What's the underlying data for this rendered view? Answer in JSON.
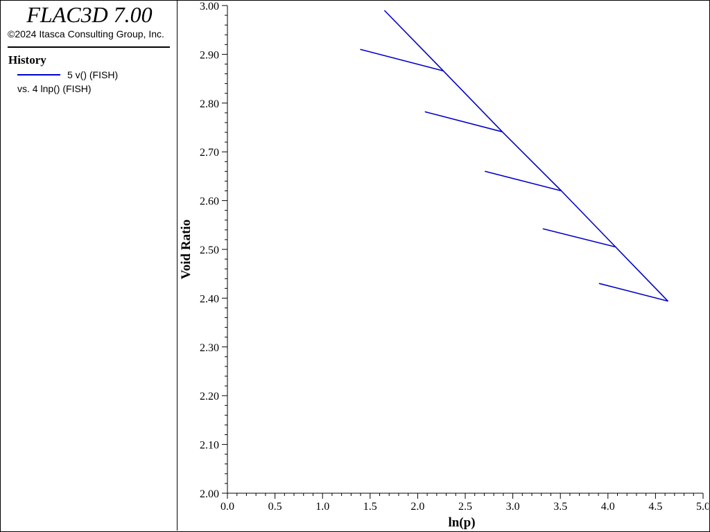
{
  "app": {
    "title": "FLAC3D 7.00",
    "copyright": "©2024 Itasca Consulting Group, Inc."
  },
  "legend": {
    "heading": "History",
    "series_label": "5 v() (FISH)",
    "vs_label": "vs. 4 lnp() (FISH)",
    "color": "#0000cc"
  },
  "chart_data": {
    "type": "line",
    "title": "",
    "xlabel": "ln(p)",
    "ylabel": "Void Ratio",
    "xlim": [
      0.0,
      5.0
    ],
    "ylim": [
      2.0,
      3.0
    ],
    "x_ticks": [
      "0.0",
      "0.5",
      "1.0",
      "1.5",
      "2.0",
      "2.5",
      "3.0",
      "3.5",
      "4.0",
      "4.5",
      "5.0"
    ],
    "y_ticks": [
      "2.00",
      "2.10",
      "2.20",
      "2.30",
      "2.40",
      "2.50",
      "2.60",
      "2.70",
      "2.80",
      "2.90",
      "3.00"
    ],
    "grid": false,
    "series": [
      {
        "name": "5 v() (FISH)",
        "color": "#0000cc",
        "points": [
          [
            1.65,
            2.99
          ],
          [
            2.27,
            2.866
          ],
          [
            1.4,
            2.91
          ],
          [
            2.27,
            2.866
          ],
          [
            2.89,
            2.741
          ],
          [
            2.08,
            2.782
          ],
          [
            2.89,
            2.741
          ],
          [
            3.51,
            2.62
          ],
          [
            2.71,
            2.66
          ],
          [
            3.51,
            2.62
          ],
          [
            4.08,
            2.505
          ],
          [
            3.32,
            2.542
          ],
          [
            4.08,
            2.505
          ],
          [
            4.63,
            2.394
          ],
          [
            3.91,
            2.43
          ],
          [
            4.63,
            2.394
          ]
        ]
      }
    ]
  }
}
